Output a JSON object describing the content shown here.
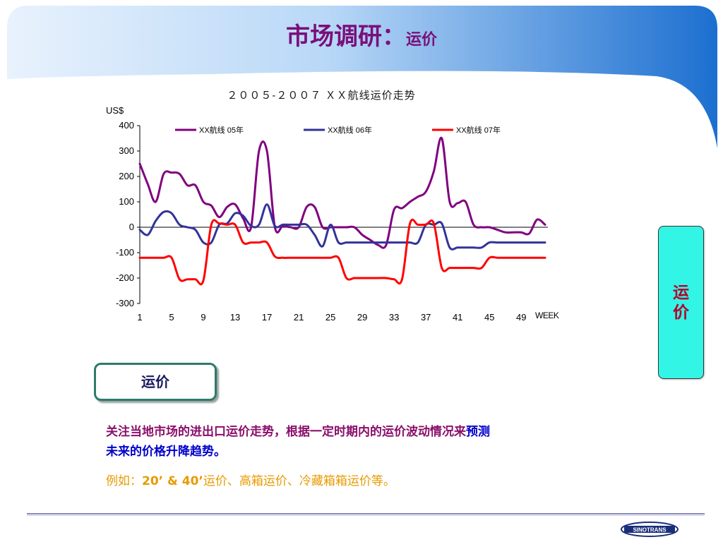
{
  "slide": {
    "title_main": "市场调研：",
    "title_sub": "运价",
    "side_label_line1": "运",
    "side_label_line2": "价",
    "section_button": "运价",
    "para1_part1": "关注当地市场的进出口运价走势，根据一定时期内的运价波动情况来",
    "para1_part2": "预测",
    "para1_part3": "未来的价格升降趋势。",
    "para2_lead": "例如：",
    "para2_bold": "20’ & 40’",
    "para2_rest": "运价、高箱运价、冷藏箱箱运价等。",
    "logo_text": "SINOTRANS"
  },
  "colors": {
    "banner_light": "#cfe4fb",
    "banner_dark": "#1c6fd0",
    "title": "#7a0f7a",
    "side_box": "#33f5e6",
    "series_05": "#800080",
    "series_06": "#333399",
    "series_07": "#ff0000"
  },
  "chart_data": {
    "type": "line",
    "title": "２００５-２００７ ＸＸ航线运价走势",
    "ylabel": "US$",
    "xlabel": "WEEK",
    "ylim": [
      -300,
      400
    ],
    "yticks": [
      400,
      300,
      200,
      100,
      0,
      -100,
      -200,
      -300
    ],
    "xlim": [
      1,
      52
    ],
    "xticks": [
      1,
      5,
      9,
      13,
      17,
      21,
      25,
      29,
      33,
      37,
      41,
      45,
      49
    ],
    "legend_position": "top",
    "grid": false,
    "x": [
      1,
      2,
      3,
      4,
      5,
      6,
      7,
      8,
      9,
      10,
      11,
      12,
      13,
      14,
      15,
      16,
      17,
      18,
      19,
      20,
      21,
      22,
      23,
      24,
      25,
      26,
      27,
      28,
      29,
      30,
      31,
      32,
      33,
      34,
      35,
      36,
      37,
      38,
      39,
      40,
      41,
      42,
      43,
      44,
      45,
      46,
      47,
      48,
      49,
      50,
      51,
      52
    ],
    "series": [
      {
        "name": "XX航线  05年",
        "color": "#800080",
        "values": [
          250,
          170,
          100,
          210,
          215,
          210,
          165,
          165,
          100,
          85,
          40,
          80,
          90,
          35,
          0,
          300,
          300,
          0,
          5,
          0,
          0,
          80,
          80,
          0,
          0,
          0,
          0,
          0,
          -30,
          -50,
          -70,
          -70,
          70,
          75,
          100,
          120,
          140,
          220,
          350,
          100,
          95,
          100,
          10,
          0,
          0,
          -10,
          -20,
          -20,
          -20,
          -25,
          30,
          10
        ]
      },
      {
        "name": "XX航线  06年",
        "color": "#333399",
        "values": [
          -10,
          -30,
          25,
          60,
          55,
          10,
          0,
          -10,
          -60,
          -60,
          10,
          15,
          55,
          45,
          5,
          10,
          90,
          5,
          10,
          10,
          10,
          10,
          -30,
          -75,
          10,
          -60,
          -60,
          -60,
          -60,
          -60,
          -60,
          -60,
          -60,
          -60,
          -60,
          -60,
          10,
          10,
          15,
          -80,
          -80,
          -80,
          -80,
          -80,
          -60,
          -60,
          -60,
          -60,
          -60,
          -60,
          -60,
          -60
        ]
      },
      {
        "name": "XX航线  07年",
        "color": "#ff0000",
        "values": [
          -120,
          -120,
          -120,
          -120,
          -120,
          -205,
          -205,
          -205,
          -210,
          10,
          15,
          10,
          10,
          -60,
          -60,
          -60,
          -60,
          -115,
          -120,
          -120,
          -120,
          -120,
          -120,
          -120,
          -120,
          -120,
          -200,
          -200,
          -200,
          -200,
          -200,
          -200,
          -205,
          -205,
          15,
          10,
          10,
          15,
          -160,
          -160,
          -160,
          -160,
          -160,
          -160,
          -120,
          -120,
          -120,
          -120,
          -120,
          -120,
          -120,
          -120
        ]
      }
    ]
  }
}
